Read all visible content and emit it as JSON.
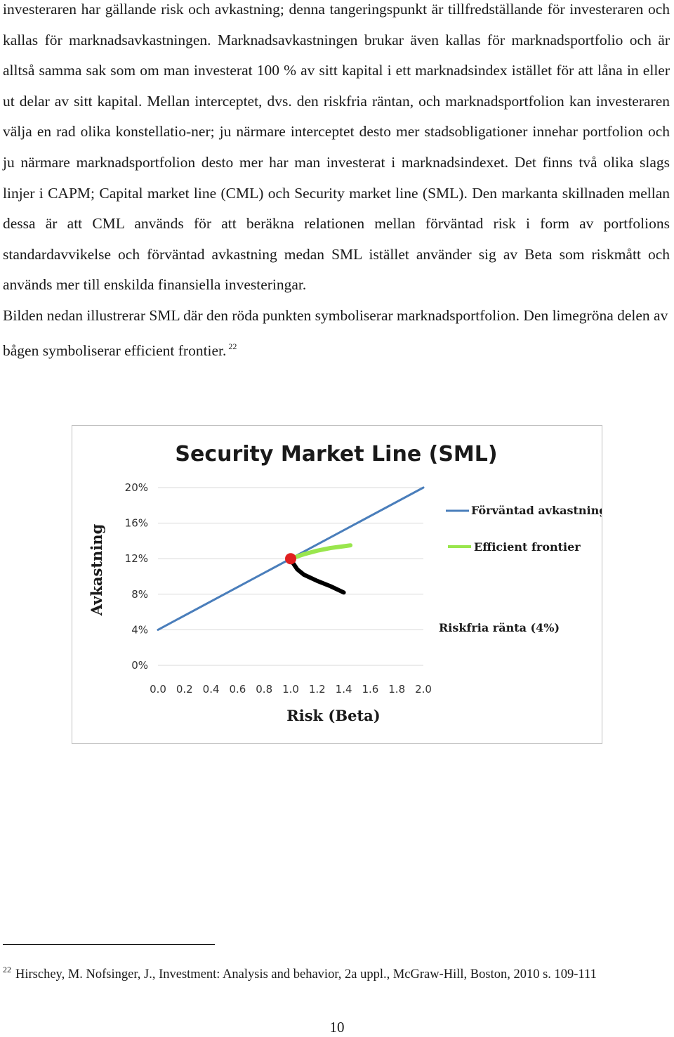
{
  "document": {
    "paragraphs": [
      "investeraren har gällande risk och avkastning; denna tangeringspunkt är tillfredställande för investeraren och kallas för marknadsavkastningen. Marknadsavkastningen brukar även kallas för marknadsportfolio och är alltså samma sak som om man investerat 100 % av sitt kapital i ett marknadsindex istället för att låna in eller ut delar av sitt kapital. Mellan interceptet, dvs. den riskfria räntan, och marknadsportfolion kan investeraren välja en rad olika konstellatio-ner; ju närmare interceptet desto mer stadsobligationer innehar portfolion och ju närmare marknadsportfolion desto mer har man investerat i marknadsindexet. Det finns två olika slags linjer i CAPM; Capital market line (CML) och Security market line (SML). Den markanta skillnaden mellan dessa är att CML används för att beräkna relationen mellan förväntad risk i form av portfolions standardavvikelse och förväntad avkastning medan SML istället använder sig av Beta som riskmått och används mer till enskilda finansiella investeringar.",
      "Bilden nedan illustrerar SML där den röda punkten symboliserar marknadsportfolion. Den limegröna delen av bågen symboliserar efficient frontier."
    ],
    "footnote_marker": "22",
    "footnote_number": "22",
    "footnote_text": "Hirschey, M. Nofsinger, J., Investment: Analysis and behavior, 2a uppl., McGraw-Hill, Boston, 2010 s. 109-111",
    "page_number": "10"
  },
  "chart_data": {
    "type": "line",
    "title": "Security Market Line (SML)",
    "xlabel": "Risk (Beta)",
    "ylabel": "Avkastning",
    "x_ticks": [
      "0.0",
      "0.2",
      "0.4",
      "0.6",
      "0.8",
      "1.0",
      "1.2",
      "1.4",
      "1.6",
      "1.8",
      "2.0"
    ],
    "y_ticks": [
      "0%",
      "4%",
      "8%",
      "12%",
      "16%",
      "20%"
    ],
    "xlim": [
      0,
      2.0
    ],
    "ylim": [
      0,
      20
    ],
    "grid": true,
    "legend_position": "right",
    "series": [
      {
        "name": "Förväntad avkastning",
        "color": "#4a7ebb",
        "x": [
          0.0,
          2.0
        ],
        "y": [
          4,
          20
        ]
      },
      {
        "name": "Efficient frontier",
        "color": "#99e64d",
        "x": [
          1.0,
          1.1,
          1.2,
          1.3,
          1.4,
          1.45
        ],
        "y": [
          12.0,
          12.5,
          12.9,
          13.2,
          13.4,
          13.5
        ]
      },
      {
        "color": "#000000",
        "x": [
          1.0,
          1.05,
          1.1,
          1.2,
          1.3,
          1.4
        ],
        "y": [
          11.9,
          10.8,
          10.2,
          9.5,
          8.9,
          8.2
        ]
      }
    ],
    "market_portfolio": {
      "x": 1.0,
      "y": 12,
      "color": "#e02020"
    },
    "annotations": [
      {
        "text": "Riskfria ränta (4%)"
      }
    ]
  }
}
